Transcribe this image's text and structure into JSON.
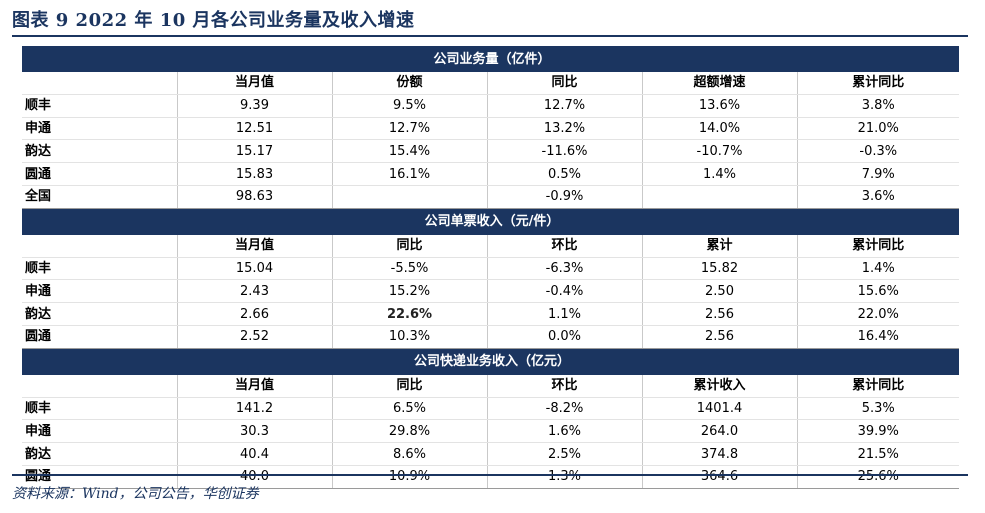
{
  "title": "图表 9    2022 年 10 月各公司业务量及收入增速",
  "sections": [
    {
      "name": "公司业务量（亿件）",
      "headers": [
        "",
        "当月值",
        "份额",
        "同比",
        "超额增速",
        "累计同比"
      ],
      "rows": [
        [
          "顺丰",
          "9.39",
          "9.5%",
          "12.7%",
          "13.6%",
          "3.8%"
        ],
        [
          "申通",
          "12.51",
          "12.7%",
          "13.2%",
          "14.0%",
          "21.0%"
        ],
        [
          "韵达",
          "15.17",
          "15.4%",
          "-11.6%",
          "-10.7%",
          "-0.3%"
        ],
        [
          "圆通",
          "15.83",
          "16.1%",
          "0.5%",
          "1.4%",
          "7.9%"
        ],
        [
          "全国",
          "98.63",
          "",
          "-0.9%",
          "",
          "3.6%"
        ]
      ]
    },
    {
      "name": "公司单票收入（元/件）",
      "headers": [
        "",
        "当月值",
        "同比",
        "环比",
        "累计",
        "累计同比"
      ],
      "rows": [
        [
          "顺丰",
          "15.04",
          "-5.5%",
          "-6.3%",
          "15.82",
          "1.4%"
        ],
        [
          "申通",
          "2.43",
          "15.2%",
          "-0.4%",
          "2.50",
          "15.6%"
        ],
        [
          "韵达",
          "2.66",
          "22.6%",
          "1.1%",
          "2.56",
          "22.0%"
        ],
        [
          "圆通",
          "2.52",
          "10.3%",
          "0.0%",
          "2.56",
          "16.4%"
        ]
      ]
    },
    {
      "name": "公司快递业务收入（亿元）",
      "headers": [
        "",
        "当月值",
        "同比",
        "环比",
        "累计收入",
        "累计同比"
      ],
      "rows": [
        [
          "顺丰",
          "141.2",
          "6.5%",
          "-8.2%",
          "1401.4",
          "5.3%"
        ],
        [
          "申通",
          "30.3",
          "29.8%",
          "1.6%",
          "264.0",
          "39.9%"
        ],
        [
          "韵达",
          "40.4",
          "8.6%",
          "2.5%",
          "374.8",
          "21.5%"
        ],
        [
          "圆通",
          "40.0",
          "10.9%",
          "1.3%",
          "364.6",
          "25.6%"
        ]
      ]
    }
  ],
  "source": "资料来源：Wind，公司公告，华创证券",
  "colors": {
    "navy": "#1b3560",
    "white": "#ffffff"
  }
}
